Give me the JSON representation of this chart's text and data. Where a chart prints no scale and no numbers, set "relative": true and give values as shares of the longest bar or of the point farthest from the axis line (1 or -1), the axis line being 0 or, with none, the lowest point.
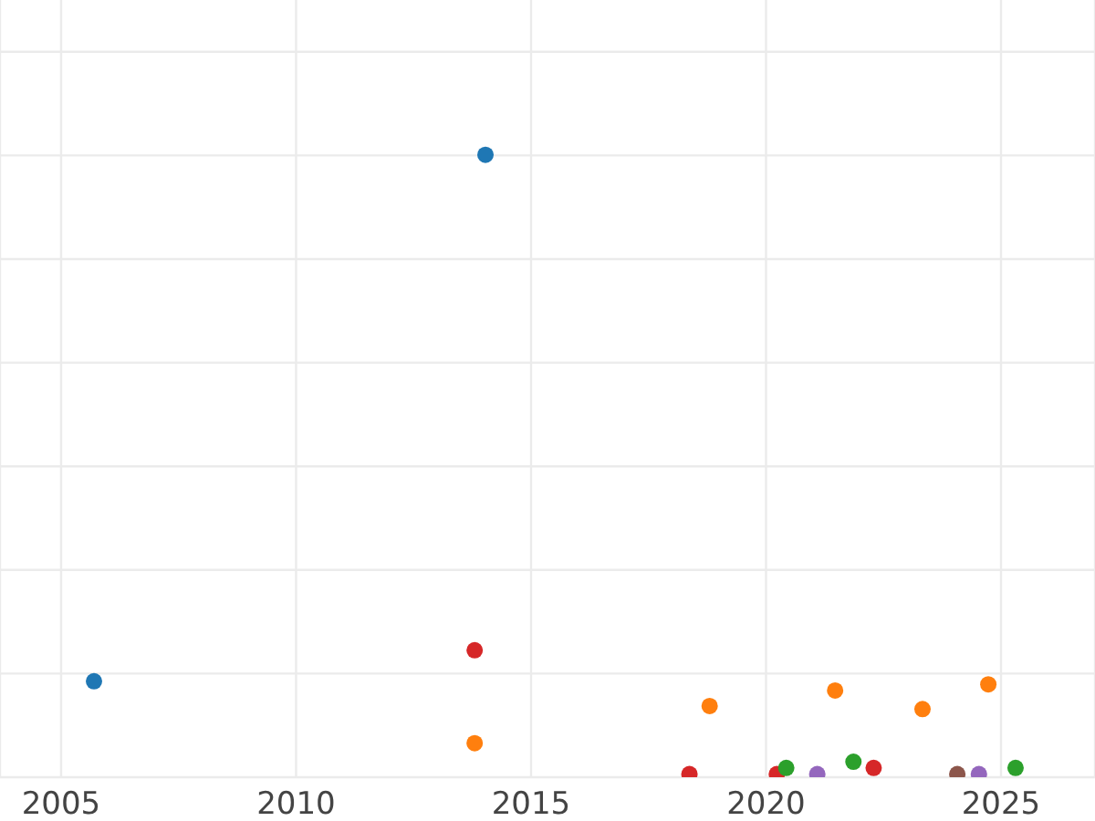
{
  "chart_data": {
    "type": "scatter",
    "relative": true,
    "xlim": [
      2003.7,
      2027
    ],
    "xticks": [
      2005,
      2010,
      2015,
      2020,
      2025
    ],
    "grid": true,
    "legend": false,
    "marker": "circle",
    "series": [
      {
        "color": "#1f77b4",
        "x": [
          2005.7,
          2014.03
        ],
        "values": [
          0.15,
          1
        ]
      },
      {
        "color": "#d62728",
        "x": [
          2013.8,
          2018.37,
          2020.23,
          2022.29
        ],
        "values": [
          0.2,
          0,
          0,
          0.01
        ]
      },
      {
        "color": "#ff7f0e",
        "x": [
          2013.8,
          2018.8,
          2021.47,
          2023.33,
          2024.73
        ],
        "values": [
          0.05,
          0.11,
          0.135,
          0.105,
          0.145
        ]
      },
      {
        "color": "#2ca02c",
        "x": [
          2020.43,
          2021.86,
          2025.31
        ],
        "values": [
          0.01,
          0.02,
          0.01
        ]
      },
      {
        "color": "#9467bd",
        "x": [
          2021.09,
          2024.53
        ],
        "values": [
          0,
          0
        ]
      },
      {
        "color": "#8c564b",
        "x": [
          2024.07
        ],
        "values": [
          0
        ]
      }
    ]
  }
}
